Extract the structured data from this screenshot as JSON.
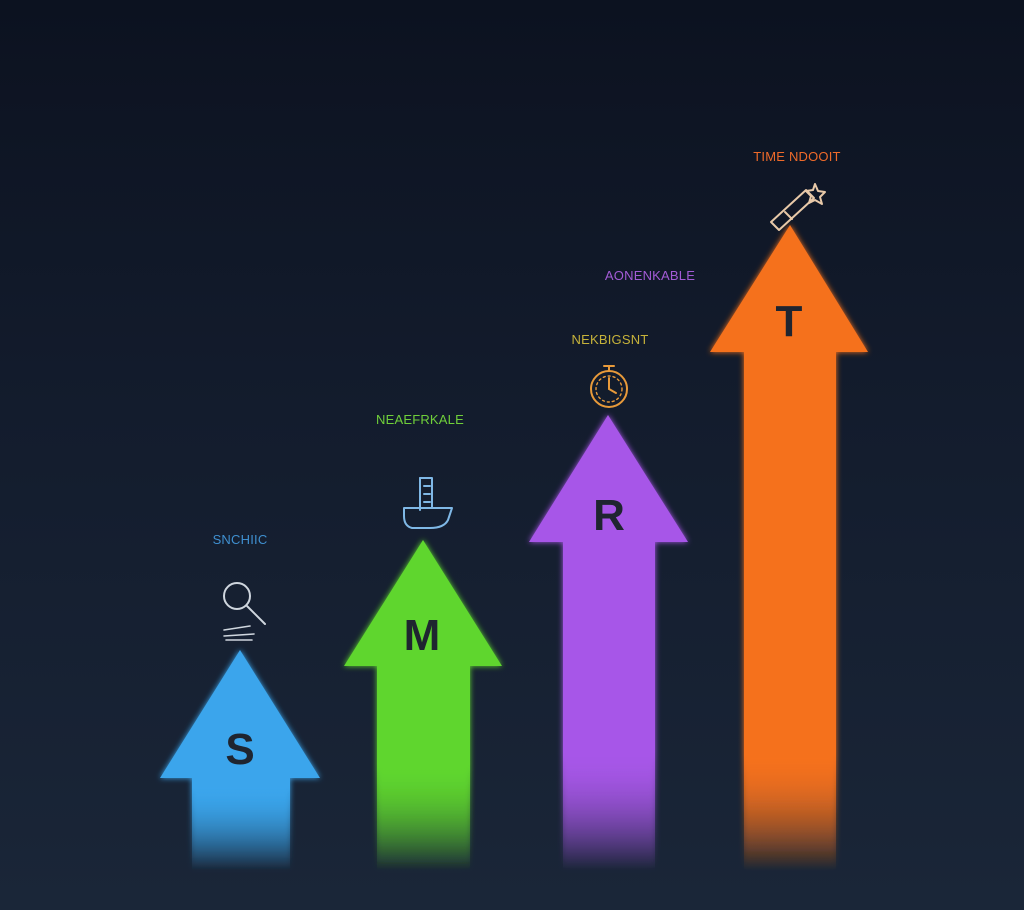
{
  "steps": [
    {
      "letter": "S",
      "label": "SNCHIIC",
      "color": "#3aa5ec",
      "label_color": "#3f8fcf",
      "icon": "magnifier-icon"
    },
    {
      "letter": "M",
      "label": "NEAEFRKALE",
      "color": "#5fd62e",
      "label_color": "#6fcf3a",
      "icon": "measuring-cup-icon"
    },
    {
      "letter": "R",
      "label": "NEKBIGSNT",
      "color": "#a757e8",
      "label_color": "#c6b23a",
      "icon": "stopwatch-icon"
    },
    {
      "letter": "T",
      "label": "TIME NDOOIT",
      "color": "#f5711c",
      "label_color": "#ee6a2a",
      "icon": "rocket-icon"
    }
  ],
  "extra_label": {
    "text": "AONENKABLE",
    "color": "#a35bd6"
  },
  "letter_color": "#1f2530"
}
